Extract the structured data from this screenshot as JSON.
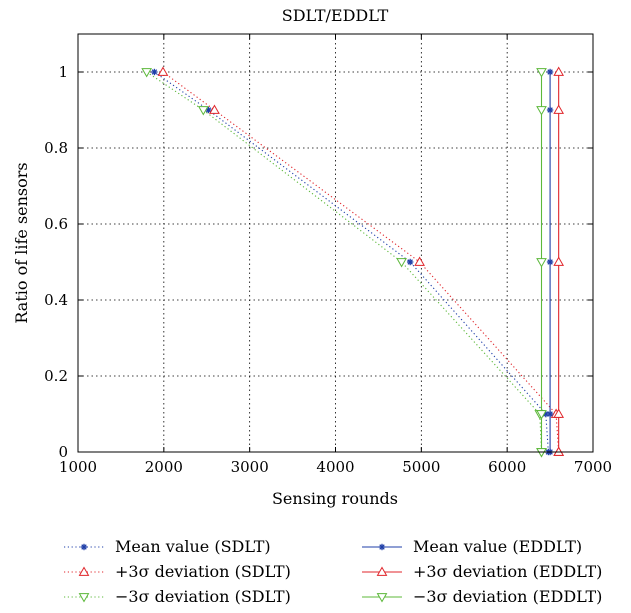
{
  "chart_data": {
    "type": "line",
    "title": "SDLT/EDDLT",
    "xlabel": "Sensing rounds",
    "ylabel": "Ratio of life sensors",
    "xlim": [
      1000,
      7000
    ],
    "ylim": [
      0,
      1.1
    ],
    "xticks": [
      "1000",
      "2000",
      "3000",
      "4000",
      "5000",
      "6000",
      "7000"
    ],
    "yticks": [
      "0",
      "0.2",
      "0.4",
      "0.6",
      "0.8",
      "1"
    ],
    "grid": true,
    "legend_position": "bottom",
    "series": [
      {
        "name": "Mean value (SDLT)",
        "color": "#1f3fa8",
        "line": "dotted",
        "marker": "star",
        "x": [
          1890,
          2520,
          4870,
          6450,
          6480
        ],
        "y": [
          1,
          0.9,
          0.5,
          0.1,
          0
        ]
      },
      {
        "name": "+3σ deviation (SDLT)",
        "color": "#e0262b",
        "line": "dotted",
        "marker": "triangle-up",
        "x": [
          1990,
          2590,
          4980,
          6570,
          6600
        ],
        "y": [
          1,
          0.9,
          0.5,
          0.1,
          0
        ]
      },
      {
        "name": "−3σ deviation (SDLT)",
        "color": "#5cb83a",
        "line": "dotted",
        "marker": "triangle-down",
        "x": [
          1800,
          2460,
          4770,
          6380,
          6400
        ],
        "y": [
          1,
          0.9,
          0.5,
          0.1,
          0
        ]
      },
      {
        "name": "Mean value (EDDLT)",
        "color": "#1f3fa8",
        "line": "solid",
        "marker": "star",
        "x": [
          6500,
          6500,
          6500,
          6500,
          6500
        ],
        "y": [
          1,
          0.9,
          0.5,
          0.1,
          0
        ]
      },
      {
        "name": "+3σ deviation (EDDLT)",
        "color": "#e0262b",
        "line": "solid",
        "marker": "triangle-up",
        "x": [
          6600,
          6600,
          6600,
          6600,
          6600
        ],
        "y": [
          1,
          0.9,
          0.5,
          0.1,
          0
        ]
      },
      {
        "name": "−3σ deviation (EDDLT)",
        "color": "#5cb83a",
        "line": "solid",
        "marker": "triangle-down",
        "x": [
          6400,
          6400,
          6400,
          6400,
          6400
        ],
        "y": [
          1,
          0.9,
          0.5,
          0.1,
          0
        ]
      }
    ]
  }
}
